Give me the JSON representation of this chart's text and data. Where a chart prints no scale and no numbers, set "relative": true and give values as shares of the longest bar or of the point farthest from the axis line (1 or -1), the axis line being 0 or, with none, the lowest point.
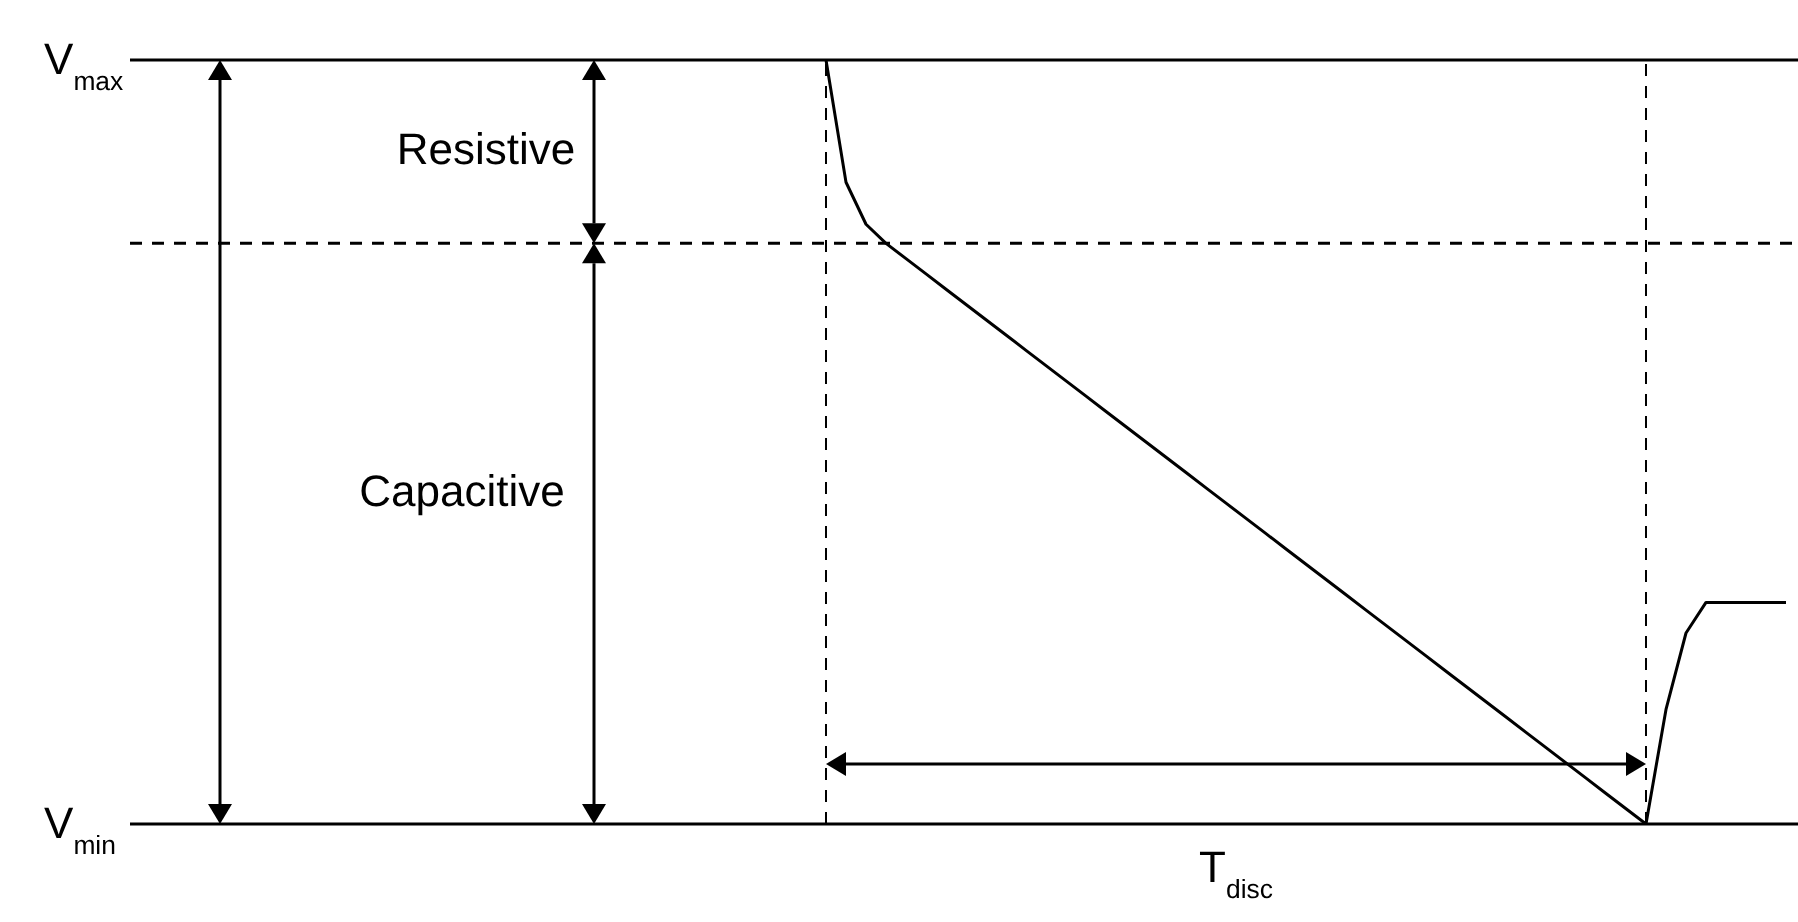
{
  "chart_data": {
    "type": "line",
    "relative": true,
    "categories": [
      null,
      null,
      null,
      null,
      null,
      null,
      null,
      null,
      null,
      null,
      null,
      null,
      null,
      null,
      null,
      null,
      null,
      null,
      null,
      null,
      null,
      null,
      null,
      null,
      null,
      null,
      null,
      null,
      null,
      null,
      null,
      null,
      null,
      null,
      null,
      null,
      null,
      null,
      null,
      null,
      null,
      null,
      null,
      null,
      null,
      null,
      null,
      null,
      null
    ],
    "series": [
      {
        "color": "#000000",
        "values": [
          1,
          0.84,
          0.785,
          0.76,
          0.74,
          0.72,
          0.7,
          0.68,
          0.66,
          0.64,
          0.62,
          0.6,
          0.58,
          0.56,
          0.54,
          0.52,
          0.5,
          0.48,
          0.46,
          0.44,
          0.42,
          0.4,
          0.38,
          0.36,
          0.34,
          0.32,
          0.3,
          0.28,
          0.26,
          0.24,
          0.22,
          0.2,
          0.18,
          0.16,
          0.14,
          0.12,
          0.1,
          0.08,
          0.06,
          0.04,
          0.02,
          0,
          0.15,
          0.25,
          0.29,
          0.29,
          0.29,
          0.29,
          0.29
        ]
      }
    ],
    "marker": "none",
    "line_style": "solid",
    "grid": false,
    "legend": false,
    "ref_lines": [
      {
        "axis": "y",
        "value": 1,
        "label": "V$_{max}$",
        "line_style": "solid"
      },
      {
        "axis": "y",
        "value": 0,
        "label": "V$_{min}$",
        "line_style": "solid"
      },
      {
        "axis": "y",
        "value": 0.76,
        "line_style": "dashed"
      }
    ],
    "annotations": [
      "Resistive",
      "Capacitive",
      "T$_{disc}$"
    ]
  }
}
